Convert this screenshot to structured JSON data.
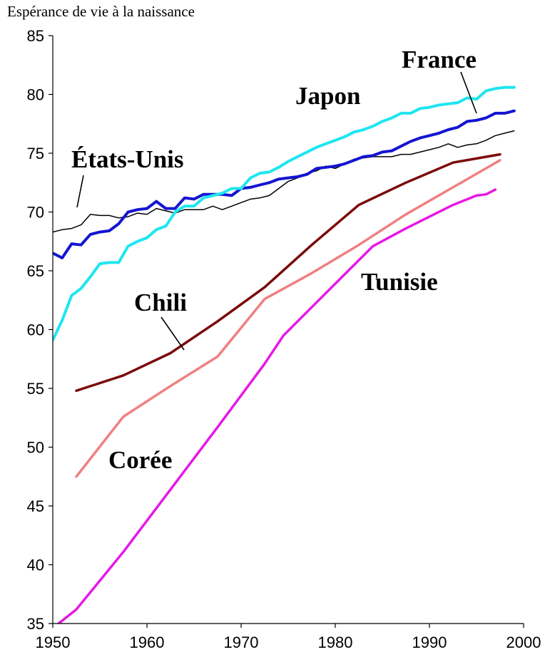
{
  "chart_data": {
    "type": "line",
    "title": "",
    "ylabel": "Espérance de vie à  la naissance",
    "xlabel": "",
    "xlim": [
      1950,
      2000
    ],
    "ylim": [
      35,
      85
    ],
    "xticks": [
      1950,
      1960,
      1970,
      1980,
      1990,
      2000
    ],
    "yticks": [
      35,
      40,
      45,
      50,
      55,
      60,
      65,
      70,
      75,
      80,
      85
    ],
    "grid": false,
    "legend": "none",
    "series": [
      {
        "name": "États-Unis",
        "color": "#000000",
        "width": 1.5,
        "x": [
          1950,
          1951,
          1952,
          1953,
          1954,
          1955,
          1956,
          1957,
          1958,
          1959,
          1960,
          1961,
          1962,
          1963,
          1964,
          1965,
          1966,
          1967,
          1968,
          1969,
          1970,
          1971,
          1972,
          1973,
          1974,
          1975,
          1976,
          1977,
          1978,
          1979,
          1980,
          1981,
          1982,
          1983,
          1984,
          1985,
          1986,
          1987,
          1988,
          1989,
          1990,
          1991,
          1992,
          1993,
          1994,
          1995,
          1996,
          1997,
          1998,
          1999
        ],
        "y": [
          68.3,
          68.5,
          68.6,
          68.9,
          69.8,
          69.7,
          69.7,
          69.5,
          69.6,
          69.9,
          69.8,
          70.3,
          70.1,
          69.9,
          70.2,
          70.2,
          70.2,
          70.5,
          70.2,
          70.5,
          70.8,
          71.1,
          71.2,
          71.4,
          72.0,
          72.6,
          72.9,
          73.3,
          73.5,
          73.9,
          73.7,
          74.1,
          74.5,
          74.6,
          74.7,
          74.7,
          74.7,
          74.9,
          74.9,
          75.1,
          75.3,
          75.5,
          75.8,
          75.5,
          75.7,
          75.8,
          76.1,
          76.5,
          76.7,
          76.9
        ]
      },
      {
        "name": "France",
        "color": "#1414d2",
        "width": 4,
        "x": [
          1950,
          1951,
          1952,
          1953,
          1954,
          1955,
          1956,
          1957,
          1958,
          1959,
          1960,
          1961,
          1962,
          1963,
          1964,
          1965,
          1966,
          1967,
          1968,
          1969,
          1970,
          1971,
          1972,
          1973,
          1974,
          1975,
          1976,
          1977,
          1978,
          1979,
          1980,
          1981,
          1982,
          1983,
          1984,
          1985,
          1986,
          1987,
          1988,
          1989,
          1990,
          1991,
          1992,
          1993,
          1994,
          1995,
          1996,
          1997,
          1998,
          1999
        ],
        "y": [
          66.5,
          66.1,
          67.3,
          67.2,
          68.1,
          68.3,
          68.4,
          69.0,
          70.0,
          70.2,
          70.3,
          70.9,
          70.3,
          70.3,
          71.2,
          71.1,
          71.5,
          71.5,
          71.5,
          71.4,
          72.0,
          72.1,
          72.3,
          72.5,
          72.8,
          72.9,
          73.0,
          73.2,
          73.7,
          73.8,
          73.9,
          74.1,
          74.4,
          74.7,
          74.8,
          75.1,
          75.2,
          75.6,
          76.0,
          76.3,
          76.5,
          76.7,
          77.0,
          77.2,
          77.7,
          77.8,
          78.0,
          78.4,
          78.4,
          78.6
        ]
      },
      {
        "name": "Japon",
        "color": "#1ee6f0",
        "width": 4,
        "x": [
          1950,
          1951,
          1952,
          1953,
          1954,
          1955,
          1956,
          1957,
          1958,
          1959,
          1960,
          1961,
          1962,
          1963,
          1964,
          1965,
          1966,
          1967,
          1968,
          1969,
          1970,
          1971,
          1972,
          1973,
          1974,
          1975,
          1976,
          1977,
          1978,
          1979,
          1980,
          1981,
          1982,
          1983,
          1984,
          1985,
          1986,
          1987,
          1988,
          1989,
          1990,
          1991,
          1992,
          1993,
          1994,
          1995,
          1996,
          1997,
          1998,
          1999
        ],
        "y": [
          59.1,
          60.8,
          62.9,
          63.5,
          64.5,
          65.6,
          65.7,
          65.7,
          67.1,
          67.5,
          67.8,
          68.5,
          68.8,
          70.0,
          70.5,
          70.5,
          71.2,
          71.4,
          71.6,
          72.0,
          72.0,
          72.9,
          73.3,
          73.4,
          73.8,
          74.3,
          74.7,
          75.1,
          75.5,
          75.8,
          76.1,
          76.4,
          76.8,
          77.0,
          77.3,
          77.7,
          78.0,
          78.4,
          78.4,
          78.8,
          78.9,
          79.1,
          79.2,
          79.3,
          79.7,
          79.6,
          80.3,
          80.5,
          80.6,
          80.6
        ]
      },
      {
        "name": "Chili",
        "color": "#7a0a0a",
        "width": 3.5,
        "x": [
          1952.5,
          1957.5,
          1962.5,
          1967.5,
          1972.5,
          1977.5,
          1982.5,
          1987.5,
          1992.5,
          1997.5
        ],
        "y": [
          54.8,
          56.1,
          58.0,
          60.7,
          63.6,
          67.2,
          70.6,
          72.5,
          74.2,
          74.9
        ]
      },
      {
        "name": "Corée",
        "color": "#f08080",
        "width": 3.5,
        "x": [
          1952.5,
          1957.5,
          1962.5,
          1967.5,
          1972.5,
          1977.5,
          1982.5,
          1987.5,
          1992.5,
          1997.5
        ],
        "y": [
          47.5,
          52.6,
          55.2,
          57.7,
          62.6,
          64.8,
          67.2,
          69.8,
          72.1,
          74.4
        ]
      },
      {
        "name": "Tunisie",
        "color": "#e619e6",
        "width": 3.5,
        "x": [
          1950.3,
          1952.5,
          1957.5,
          1962.5,
          1967.5,
          1972.5,
          1974.5,
          1979,
          1984,
          1987.5,
          1992.5,
          1995,
          1996,
          1997
        ],
        "y": [
          34.8,
          36.2,
          41.1,
          46.4,
          51.7,
          57.1,
          59.5,
          63.1,
          67.1,
          68.6,
          70.6,
          71.4,
          71.5,
          71.9
        ]
      }
    ],
    "labels": [
      "Japon",
      "France",
      "États-Unis",
      "Chili",
      "Tunisie",
      "Corée"
    ]
  }
}
